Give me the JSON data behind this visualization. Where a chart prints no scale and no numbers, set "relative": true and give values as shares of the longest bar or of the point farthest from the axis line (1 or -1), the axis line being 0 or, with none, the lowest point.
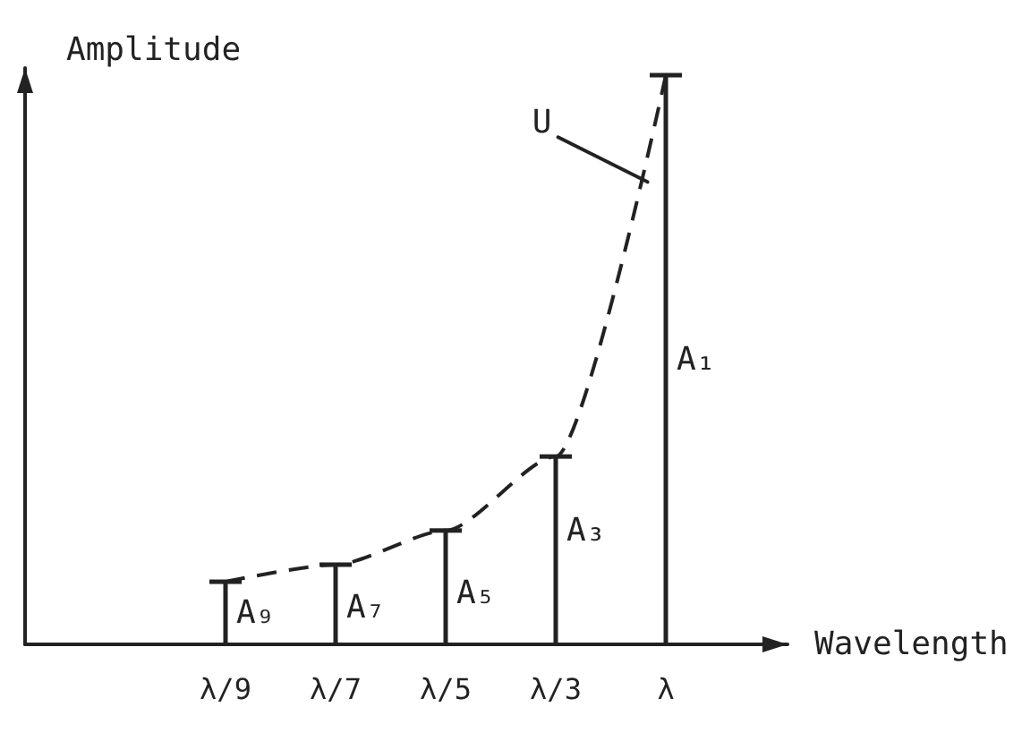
{
  "chart_data": {
    "type": "bar",
    "relative": true,
    "xlabel": "Wavelength",
    "ylabel": "Amplitude",
    "categories": [
      "λ/9",
      "λ/7",
      "λ/5",
      "λ/3",
      "λ"
    ],
    "series": [
      {
        "color": "#222222",
        "values": [
          0.11,
          0.14,
          0.2,
          0.33,
          1
        ]
      },
      {
        "type": "line",
        "name": "U",
        "color": "#222222",
        "values": [
          0.11,
          0.14,
          0.2,
          0.33,
          1
        ],
        "line_style": "dashed",
        "marker": "none"
      }
    ],
    "annotations": [
      {
        "text": "A₉",
        "x": "λ/9",
        "y": 0.055
      },
      {
        "text": "A₇",
        "x": "λ/7",
        "y": 0.065
      },
      {
        "text": "A₅",
        "x": "λ/5",
        "y": 0.09
      },
      {
        "text": "A₃",
        "x": "λ/3",
        "y": 0.2
      },
      {
        "text": "A₁",
        "x": "λ",
        "y": 0.5
      }
    ]
  }
}
